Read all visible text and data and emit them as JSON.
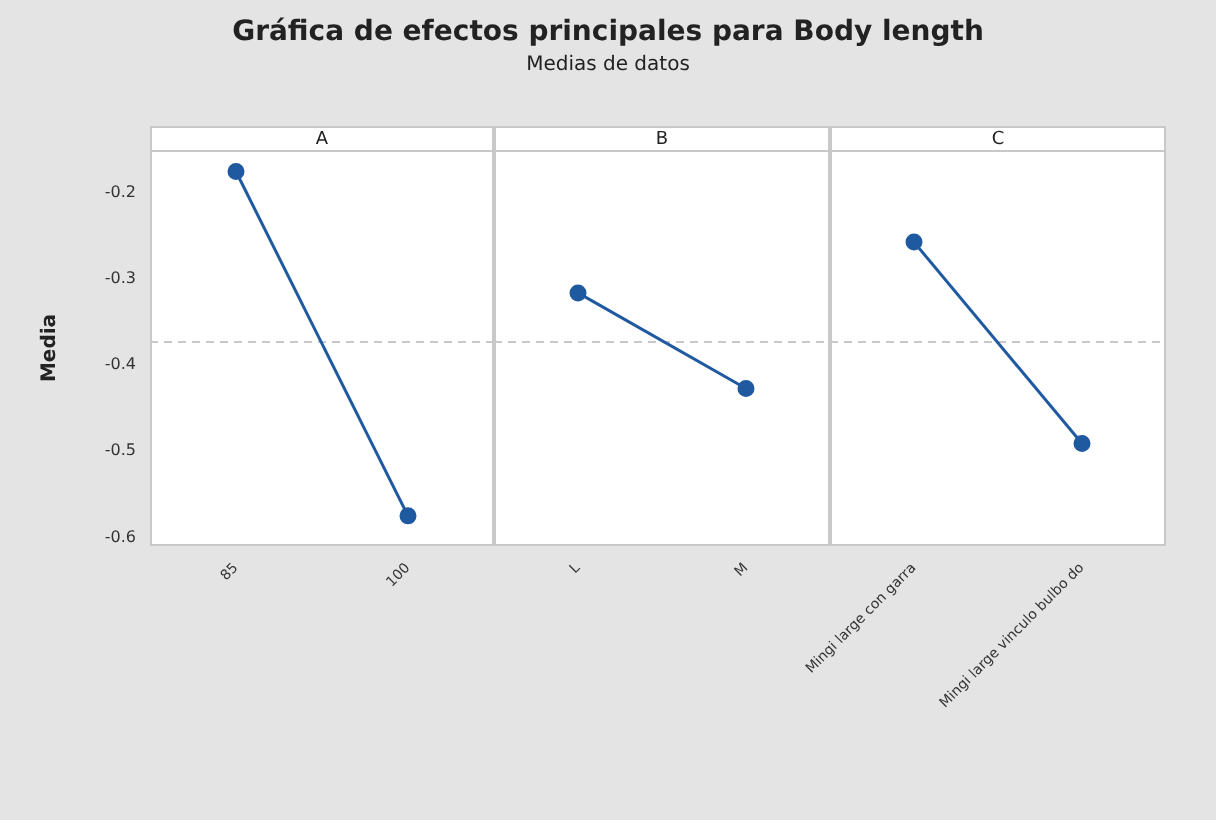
{
  "chart_data": [
    {
      "type": "other",
      "title": "Gráfica de efectos principales para Body length",
      "subtitle": "Medias de datos"
    },
    {
      "type": "line",
      "title": "A",
      "ylabel": "Media",
      "categories": [
        "85",
        "100"
      ],
      "series": [
        {
          "color": "#1f5aa0",
          "values": [
            -0.175,
            -0.575
          ]
        }
      ],
      "ylim": [
        -0.61,
        -0.15
      ],
      "yticks": [
        -0.2,
        -0.3,
        -0.4,
        -0.5,
        -0.6
      ],
      "marker": "circle",
      "ref_lines": [
        {
          "axis": "y",
          "value": -0.373,
          "color": "#c8c8c8",
          "line_style": "dashed"
        }
      ]
    },
    {
      "type": "line",
      "title": "B",
      "categories": [
        "L",
        "M"
      ],
      "series": [
        {
          "color": "#1f5aa0",
          "values": [
            -0.316,
            -0.427
          ]
        }
      ],
      "ylim": [
        -0.61,
        -0.15
      ],
      "yticks": [
        -0.2,
        -0.3,
        -0.4,
        -0.5,
        -0.6
      ],
      "tick_labels": "x",
      "marker": "circle",
      "ref_lines": [
        {
          "axis": "y",
          "value": -0.373,
          "color": "#c8c8c8",
          "line_style": "dashed"
        }
      ]
    },
    {
      "type": "line",
      "title": "C",
      "categories": [
        "Mingi large con garra",
        "Mingi large vinculo bulbo do"
      ],
      "series": [
        {
          "color": "#1f5aa0",
          "values": [
            -0.257,
            -0.491
          ]
        }
      ],
      "ylim": [
        -0.61,
        -0.15
      ],
      "yticks": [
        -0.2,
        -0.3,
        -0.4,
        -0.5,
        -0.6
      ],
      "tick_labels": "x",
      "marker": "circle",
      "ref_lines": [
        {
          "axis": "y",
          "value": -0.373,
          "color": "#c8c8c8",
          "line_style": "dashed"
        }
      ]
    }
  ]
}
